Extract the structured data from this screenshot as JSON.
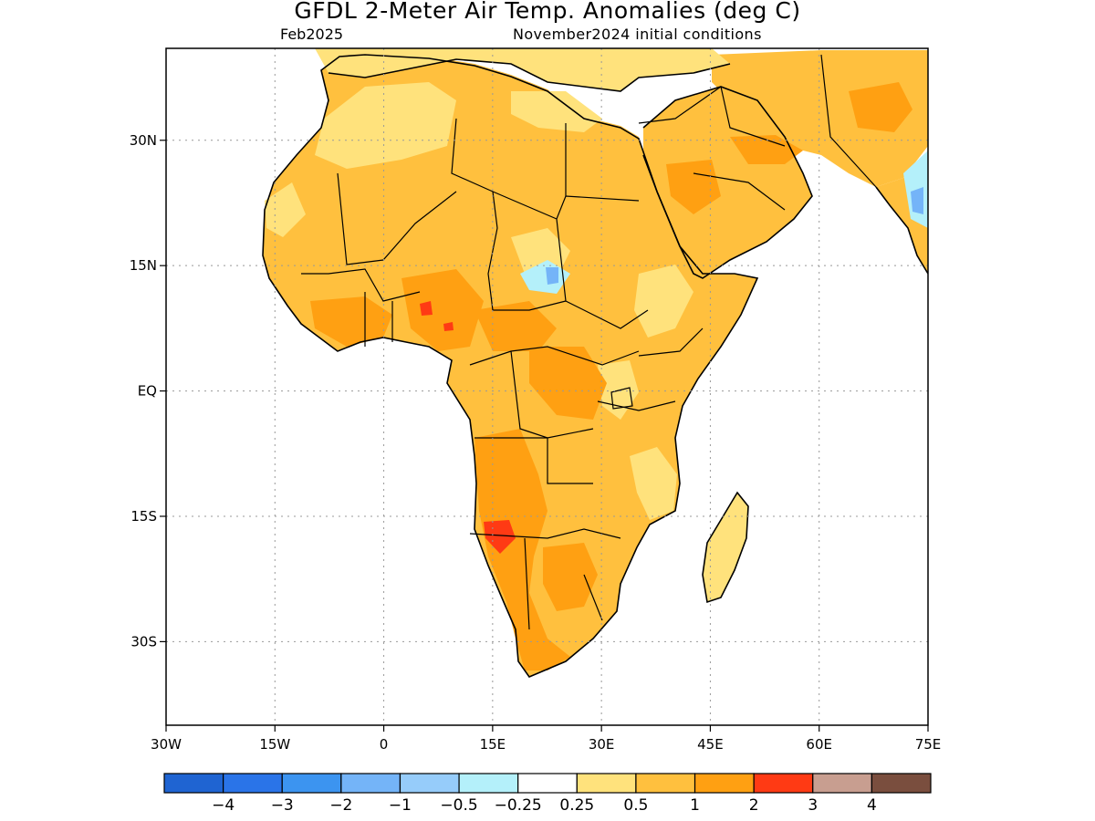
{
  "header": {
    "title": "GFDL 2-Meter Air Temp. Anomalies (deg C)",
    "valid_month": "Feb2025",
    "initial_conditions": "November2024 initial conditions"
  },
  "map": {
    "lon_range": [
      -30,
      75
    ],
    "lat_range": [
      -40,
      41
    ],
    "lon_ticks": [
      {
        "value": -30,
        "label": "30W"
      },
      {
        "value": -15,
        "label": "15W"
      },
      {
        "value": 0,
        "label": "0"
      },
      {
        "value": 15,
        "label": "15E"
      },
      {
        "value": 30,
        "label": "30E"
      },
      {
        "value": 45,
        "label": "45E"
      },
      {
        "value": 60,
        "label": "60E"
      },
      {
        "value": 75,
        "label": "75E"
      }
    ],
    "lat_ticks": [
      {
        "value": 30,
        "label": "30N"
      },
      {
        "value": 15,
        "label": "15N"
      },
      {
        "value": 0,
        "label": "EQ"
      },
      {
        "value": -15,
        "label": "15S"
      },
      {
        "value": -30,
        "label": "30S"
      }
    ],
    "grid": "dotted"
  },
  "colorbar": {
    "colors": [
      "#1f64d2",
      "#2a74e8",
      "#3c94f0",
      "#74b4f8",
      "#96ccfa",
      "#b4f0fa",
      "#ffffff",
      "#ffe27c",
      "#ffc03e",
      "#ffa012",
      "#ff3a14",
      "#c89e90",
      "#7a4e3e"
    ],
    "labels": [
      "-4",
      "-3",
      "-2",
      "-1",
      "-0.5",
      "-0.25",
      "0.25",
      "0.5",
      "1",
      "2",
      "3",
      "4"
    ]
  },
  "anomaly_colors": {
    "land_base": "#ffc03e",
    "weak_warm": "#ffe27c",
    "strong_warm": "#ffa012",
    "very_strong_warm": "#ff3a14",
    "cool": "#74b4f8",
    "weak_cool": "#b4f0fa"
  }
}
